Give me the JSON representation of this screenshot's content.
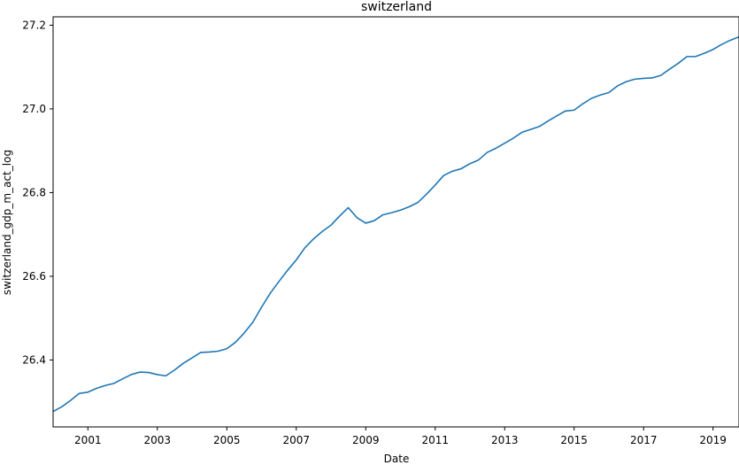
{
  "chart_data": {
    "type": "line",
    "title": "switzerland",
    "xlabel": "Date",
    "ylabel": "switzerland_gdp_m_act_log",
    "xlim": [
      "2000-01-01",
      "2019-10-01"
    ],
    "ylim": [
      26.24,
      27.22
    ],
    "x_ticks": [
      "2001",
      "2003",
      "2005",
      "2007",
      "2009",
      "2011",
      "2013",
      "2015",
      "2017",
      "2019"
    ],
    "y_ticks": [
      "26.4",
      "26.6",
      "26.8",
      "27.0",
      "27.2"
    ],
    "grid": false,
    "legend": "none",
    "colors": {
      "line": "#1f77b4"
    },
    "series": [
      {
        "x": [
          "2000-01-01",
          "2000-04-01",
          "2000-07-01",
          "2000-10-01",
          "2001-01-01",
          "2001-04-01",
          "2001-07-01",
          "2001-10-01",
          "2002-01-01",
          "2002-04-01",
          "2002-07-01",
          "2002-10-01",
          "2003-01-01",
          "2003-04-01",
          "2003-07-01",
          "2003-10-01",
          "2004-01-01",
          "2004-04-01",
          "2004-07-01",
          "2004-10-01",
          "2005-01-01",
          "2005-04-01",
          "2005-07-01",
          "2005-10-01",
          "2006-01-01",
          "2006-04-01",
          "2006-07-01",
          "2006-10-01",
          "2007-01-01",
          "2007-04-01",
          "2007-07-01",
          "2007-10-01",
          "2008-01-01",
          "2008-04-01",
          "2008-07-01",
          "2008-10-01",
          "2009-01-01",
          "2009-04-01",
          "2009-07-01",
          "2009-10-01",
          "2010-01-01",
          "2010-04-01",
          "2010-07-01",
          "2010-10-01",
          "2011-01-01",
          "2011-04-01",
          "2011-07-01",
          "2011-10-01",
          "2012-01-01",
          "2012-04-01",
          "2012-07-01",
          "2012-10-01",
          "2013-01-01",
          "2013-04-01",
          "2013-07-01",
          "2013-10-01",
          "2014-01-01",
          "2014-04-01",
          "2014-07-01",
          "2014-10-01",
          "2015-01-01",
          "2015-04-01",
          "2015-07-01",
          "2015-10-01",
          "2016-01-01",
          "2016-04-01",
          "2016-07-01",
          "2016-10-01",
          "2017-01-01",
          "2017-04-01",
          "2017-07-01",
          "2017-10-01",
          "2018-01-01",
          "2018-04-01",
          "2018-07-01",
          "2018-10-01",
          "2019-01-01",
          "2019-04-01",
          "2019-07-01",
          "2019-10-01"
        ],
        "values": [
          26.277,
          26.288,
          26.303,
          26.32,
          26.323,
          26.332,
          26.339,
          26.344,
          26.355,
          26.365,
          26.371,
          26.37,
          26.365,
          26.362,
          26.376,
          26.392,
          26.405,
          26.418,
          26.419,
          26.421,
          26.427,
          26.442,
          26.464,
          26.49,
          26.526,
          26.559,
          26.587,
          26.614,
          26.639,
          26.668,
          26.689,
          26.707,
          26.722,
          26.744,
          26.764,
          26.74,
          26.727,
          26.733,
          26.747,
          26.752,
          26.758,
          26.766,
          26.776,
          26.796,
          26.818,
          26.841,
          26.851,
          26.857,
          26.869,
          26.878,
          26.896,
          26.906,
          26.918,
          26.93,
          26.944,
          26.951,
          26.958,
          26.971,
          26.983,
          26.995,
          26.997,
          27.012,
          27.025,
          27.033,
          27.039,
          27.055,
          27.065,
          27.071,
          27.073,
          27.074,
          27.08,
          27.095,
          27.109,
          27.125,
          27.125,
          27.133,
          27.142,
          27.154,
          27.164,
          27.172
        ]
      }
    ]
  }
}
